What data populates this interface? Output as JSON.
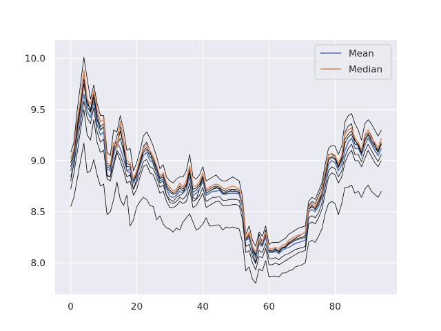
{
  "chart_data": {
    "type": "line",
    "title": "",
    "xlabel": "",
    "ylabel": "",
    "xlim": [
      -4.7,
      98.7
    ],
    "ylim": [
      7.69,
      10.18
    ],
    "xticks": [
      0,
      20,
      40,
      60,
      80
    ],
    "yticks": [
      8.0,
      8.5,
      9.0,
      9.5,
      10.0
    ],
    "xtick_labels": [
      "0",
      "20",
      "40",
      "60",
      "80"
    ],
    "ytick_labels": [
      "8.0",
      "8.5",
      "9.0",
      "9.5",
      "10.0"
    ],
    "grid": true,
    "legend_position": "top-right",
    "series": [
      {
        "name": "Mean",
        "color": "#4c72b0",
        "role": "mean",
        "values": [
          8.9,
          9.02,
          9.25,
          9.45,
          9.65,
          9.48,
          9.42,
          9.58,
          9.35,
          9.25,
          9.28,
          8.92,
          8.9,
          9.05,
          9.18,
          9.12,
          9.02,
          8.9,
          8.92,
          8.78,
          8.85,
          8.95,
          9.05,
          9.08,
          9.0,
          8.98,
          8.9,
          8.8,
          8.82,
          8.72,
          8.65,
          8.64,
          8.66,
          8.7,
          8.68,
          8.72,
          8.84,
          8.66,
          8.68,
          8.72,
          8.8,
          8.66,
          8.68,
          8.7,
          8.7,
          8.71,
          8.67,
          8.67,
          8.68,
          8.68,
          8.68,
          8.67,
          8.54,
          8.22,
          8.24,
          8.12,
          8.05,
          8.18,
          8.16,
          8.25,
          8.1,
          8.1,
          8.11,
          8.09,
          8.12,
          8.14,
          8.15,
          8.17,
          8.19,
          8.2,
          8.21,
          8.22,
          8.5,
          8.52,
          8.5,
          8.55,
          8.64,
          8.8,
          8.96,
          9.0,
          8.98,
          8.9,
          8.96,
          9.1,
          9.18,
          9.22,
          9.12,
          9.12,
          9.05,
          9.15,
          9.22,
          9.16,
          9.1,
          9.05,
          9.12
        ]
      },
      {
        "name": "Median",
        "color": "#dd8452",
        "role": "median",
        "values": [
          9.02,
          9.12,
          9.4,
          9.6,
          9.88,
          9.6,
          9.55,
          9.68,
          9.5,
          9.38,
          9.4,
          8.98,
          8.96,
          9.18,
          9.12,
          9.38,
          9.2,
          9.0,
          8.98,
          8.82,
          8.9,
          9.02,
          9.12,
          9.16,
          9.1,
          9.04,
          8.95,
          8.85,
          8.88,
          8.78,
          8.74,
          8.7,
          8.72,
          8.78,
          8.74,
          8.8,
          8.95,
          8.75,
          8.75,
          8.8,
          8.88,
          8.72,
          8.74,
          8.76,
          8.77,
          8.76,
          8.73,
          8.72,
          8.74,
          8.75,
          8.74,
          8.72,
          8.58,
          8.24,
          8.3,
          8.16,
          8.1,
          8.24,
          8.2,
          8.3,
          8.13,
          8.14,
          8.15,
          8.14,
          8.17,
          8.18,
          8.22,
          8.24,
          8.26,
          8.27,
          8.28,
          8.3,
          8.55,
          8.58,
          8.55,
          8.62,
          8.7,
          8.88,
          9.05,
          9.07,
          9.05,
          8.97,
          9.05,
          9.26,
          9.3,
          9.32,
          9.22,
          9.18,
          9.1,
          9.25,
          9.3,
          9.22,
          9.18,
          9.12,
          9.22
        ]
      },
      {
        "name": "",
        "color": "#000000",
        "role": "band",
        "values": [
          8.94,
          9.06,
          9.31,
          9.51,
          9.75,
          9.53,
          9.47,
          9.62,
          9.41,
          9.3,
          9.33,
          8.94,
          8.92,
          9.1,
          9.15,
          9.22,
          9.09,
          8.94,
          8.94,
          8.79,
          8.87,
          8.97,
          9.08,
          9.11,
          9.04,
          9.0,
          8.92,
          8.82,
          8.84,
          8.74,
          8.69,
          8.67,
          8.68,
          8.73,
          8.7,
          8.75,
          8.88,
          8.69,
          8.71,
          8.75,
          8.83,
          8.68,
          8.7,
          8.72,
          8.73,
          8.73,
          8.69,
          8.69,
          8.7,
          8.7,
          8.7,
          8.69,
          8.55,
          8.22,
          8.26,
          8.13,
          8.07,
          8.2,
          8.17,
          8.27,
          8.11,
          8.11,
          8.12,
          8.11,
          8.14,
          8.15,
          8.18,
          8.2,
          8.22,
          8.23,
          8.24,
          8.25,
          8.52,
          8.55,
          8.52,
          8.58,
          8.66,
          8.83,
          9.0,
          9.03,
          9.01,
          8.93,
          9.0,
          9.17,
          9.23,
          9.26,
          9.16,
          9.15,
          9.07,
          9.19,
          9.25,
          9.18,
          9.13,
          9.08,
          9.16
        ]
      },
      {
        "name": "",
        "color": "#000000",
        "role": "band",
        "values": [
          8.98,
          9.09,
          9.35,
          9.55,
          9.8,
          9.56,
          9.5,
          9.65,
          9.45,
          9.33,
          9.36,
          8.96,
          8.94,
          9.14,
          9.14,
          9.29,
          9.14,
          8.97,
          8.96,
          8.8,
          8.88,
          8.99,
          9.1,
          9.13,
          9.07,
          9.02,
          8.93,
          8.83,
          8.86,
          8.76,
          8.71,
          8.68,
          8.7,
          8.75,
          8.72,
          8.77,
          8.91,
          8.72,
          8.73,
          8.77,
          8.85,
          8.7,
          8.72,
          8.74,
          8.75,
          8.74,
          8.71,
          8.7,
          8.72,
          8.72,
          8.72,
          8.7,
          8.56,
          8.23,
          8.28,
          8.14,
          8.08,
          8.22,
          8.18,
          8.28,
          8.12,
          8.12,
          8.13,
          8.12,
          8.15,
          8.16,
          8.19,
          8.21,
          8.23,
          8.24,
          8.25,
          8.27,
          8.53,
          8.56,
          8.53,
          8.6,
          8.67,
          8.85,
          9.02,
          9.04,
          9.02,
          8.94,
          9.02,
          9.21,
          9.26,
          9.29,
          9.19,
          9.16,
          9.08,
          9.21,
          9.27,
          9.2,
          9.15,
          9.1,
          9.18
        ]
      },
      {
        "name": "",
        "color": "#000000",
        "role": "band",
        "values": [
          8.84,
          8.96,
          9.18,
          9.38,
          9.58,
          9.42,
          9.36,
          9.52,
          9.28,
          9.18,
          9.21,
          8.86,
          8.84,
          8.98,
          9.1,
          9.05,
          8.96,
          8.84,
          8.86,
          8.72,
          8.79,
          8.89,
          8.99,
          9.01,
          8.94,
          8.92,
          8.84,
          8.74,
          8.76,
          8.66,
          8.59,
          8.58,
          8.6,
          8.64,
          8.62,
          8.66,
          8.78,
          8.6,
          8.62,
          8.66,
          8.74,
          8.6,
          8.62,
          8.64,
          8.64,
          8.65,
          8.61,
          8.61,
          8.62,
          8.62,
          8.62,
          8.61,
          8.48,
          8.16,
          8.18,
          8.06,
          7.99,
          8.12,
          8.1,
          8.19,
          8.04,
          8.04,
          8.05,
          8.03,
          8.06,
          8.08,
          8.09,
          8.11,
          8.13,
          8.14,
          8.15,
          8.16,
          8.44,
          8.46,
          8.44,
          8.49,
          8.58,
          8.74,
          8.9,
          8.94,
          8.92,
          8.84,
          8.9,
          9.04,
          9.12,
          9.16,
          9.06,
          9.06,
          8.99,
          9.09,
          9.16,
          9.1,
          9.04,
          8.99,
          9.06
        ]
      },
      {
        "name": "",
        "color": "#000000",
        "role": "band",
        "values": [
          9.08,
          9.18,
          9.5,
          9.75,
          10.01,
          9.8,
          9.6,
          9.74,
          9.56,
          9.44,
          9.44,
          9.08,
          9.05,
          9.3,
          9.28,
          9.44,
          9.3,
          9.1,
          9.12,
          8.9,
          8.98,
          9.1,
          9.24,
          9.28,
          9.22,
          9.14,
          9.04,
          8.92,
          8.96,
          8.84,
          8.8,
          8.78,
          8.82,
          8.84,
          8.84,
          8.9,
          9.06,
          8.84,
          8.82,
          8.86,
          8.94,
          8.8,
          8.82,
          8.84,
          8.86,
          8.82,
          8.8,
          8.8,
          8.82,
          8.84,
          8.82,
          8.8,
          8.64,
          8.28,
          8.36,
          8.22,
          8.16,
          8.3,
          8.26,
          8.36,
          8.18,
          8.2,
          8.2,
          8.2,
          8.22,
          8.24,
          8.28,
          8.3,
          8.32,
          8.34,
          8.35,
          8.36,
          8.6,
          8.64,
          8.62,
          8.7,
          8.78,
          8.96,
          9.12,
          9.15,
          9.14,
          9.06,
          9.14,
          9.38,
          9.44,
          9.46,
          9.36,
          9.3,
          9.2,
          9.36,
          9.4,
          9.36,
          9.3,
          9.24,
          9.3
        ]
      },
      {
        "name": "",
        "color": "#000000",
        "role": "band",
        "values": [
          8.8,
          8.98,
          9.3,
          9.6,
          9.85,
          9.6,
          9.48,
          9.68,
          9.4,
          9.3,
          9.33,
          8.85,
          8.84,
          9.1,
          9.24,
          9.33,
          9.12,
          8.9,
          8.88,
          8.72,
          8.82,
          8.98,
          9.14,
          9.18,
          9.1,
          8.96,
          8.88,
          8.78,
          8.8,
          8.66,
          8.62,
          8.6,
          8.64,
          8.66,
          8.68,
          8.76,
          8.92,
          8.64,
          8.62,
          8.72,
          8.84,
          8.68,
          8.7,
          8.72,
          8.74,
          8.72,
          8.68,
          8.68,
          8.7,
          8.72,
          8.7,
          8.68,
          8.55,
          8.22,
          8.26,
          8.1,
          8.0,
          8.28,
          8.2,
          8.32,
          8.12,
          8.12,
          8.14,
          8.1,
          8.14,
          8.16,
          8.2,
          8.22,
          8.24,
          8.26,
          8.28,
          8.3,
          8.56,
          8.6,
          8.58,
          8.66,
          8.74,
          8.9,
          9.06,
          9.06,
          9.04,
          8.94,
          9.04,
          9.28,
          9.34,
          9.36,
          9.2,
          9.14,
          9.06,
          9.24,
          9.3,
          9.24,
          9.16,
          9.08,
          9.16
        ]
      },
      {
        "name": "",
        "color": "#000000",
        "role": "band",
        "values": [
          8.72,
          8.88,
          9.08,
          9.3,
          9.5,
          9.25,
          9.2,
          9.4,
          9.18,
          9.08,
          9.1,
          8.82,
          8.8,
          8.94,
          9.08,
          9.0,
          8.9,
          8.78,
          8.8,
          8.66,
          8.72,
          8.84,
          8.94,
          8.96,
          8.88,
          8.86,
          8.78,
          8.68,
          8.7,
          8.6,
          8.54,
          8.54,
          8.56,
          8.6,
          8.58,
          8.6,
          8.72,
          8.54,
          8.56,
          8.62,
          8.68,
          8.54,
          8.56,
          8.58,
          8.6,
          8.6,
          8.56,
          8.56,
          8.56,
          8.57,
          8.57,
          8.56,
          8.42,
          8.1,
          8.12,
          8.0,
          7.93,
          8.06,
          8.05,
          8.14,
          7.98,
          7.98,
          8.0,
          7.98,
          8.0,
          8.02,
          8.04,
          8.06,
          8.08,
          8.1,
          8.11,
          8.12,
          8.38,
          8.4,
          8.38,
          8.44,
          8.52,
          8.68,
          8.84,
          8.88,
          8.86,
          8.78,
          8.84,
          8.98,
          9.06,
          9.1,
          9.0,
          9.0,
          8.94,
          9.02,
          9.1,
          9.04,
          8.98,
          8.94,
          9.0
        ]
      },
      {
        "name": "",
        "color": "#000000",
        "role": "band",
        "values": [
          8.55,
          8.64,
          8.82,
          9.0,
          9.17,
          8.88,
          8.9,
          9.01,
          8.86,
          8.75,
          8.77,
          8.47,
          8.5,
          8.62,
          8.79,
          8.62,
          8.56,
          8.66,
          8.36,
          8.42,
          8.55,
          8.6,
          8.64,
          8.62,
          8.56,
          8.55,
          8.42,
          8.46,
          8.38,
          8.34,
          8.33,
          8.3,
          8.34,
          8.32,
          8.4,
          8.44,
          8.48,
          8.4,
          8.32,
          8.34,
          8.38,
          8.44,
          8.36,
          8.36,
          8.37,
          8.37,
          8.32,
          8.35,
          8.34,
          8.35,
          8.34,
          8.33,
          8.2,
          7.92,
          7.96,
          7.84,
          7.8,
          7.94,
          7.92,
          8.02,
          7.86,
          7.87,
          7.87,
          7.86,
          7.9,
          7.9,
          7.92,
          7.93,
          7.96,
          7.97,
          7.98,
          8.0,
          8.2,
          8.22,
          8.2,
          8.26,
          8.33,
          8.48,
          8.58,
          8.6,
          8.58,
          8.47,
          8.58,
          8.74,
          8.74,
          8.76,
          8.68,
          8.7,
          8.64,
          8.72,
          8.76,
          8.7,
          8.67,
          8.64,
          8.7
        ]
      }
    ]
  }
}
